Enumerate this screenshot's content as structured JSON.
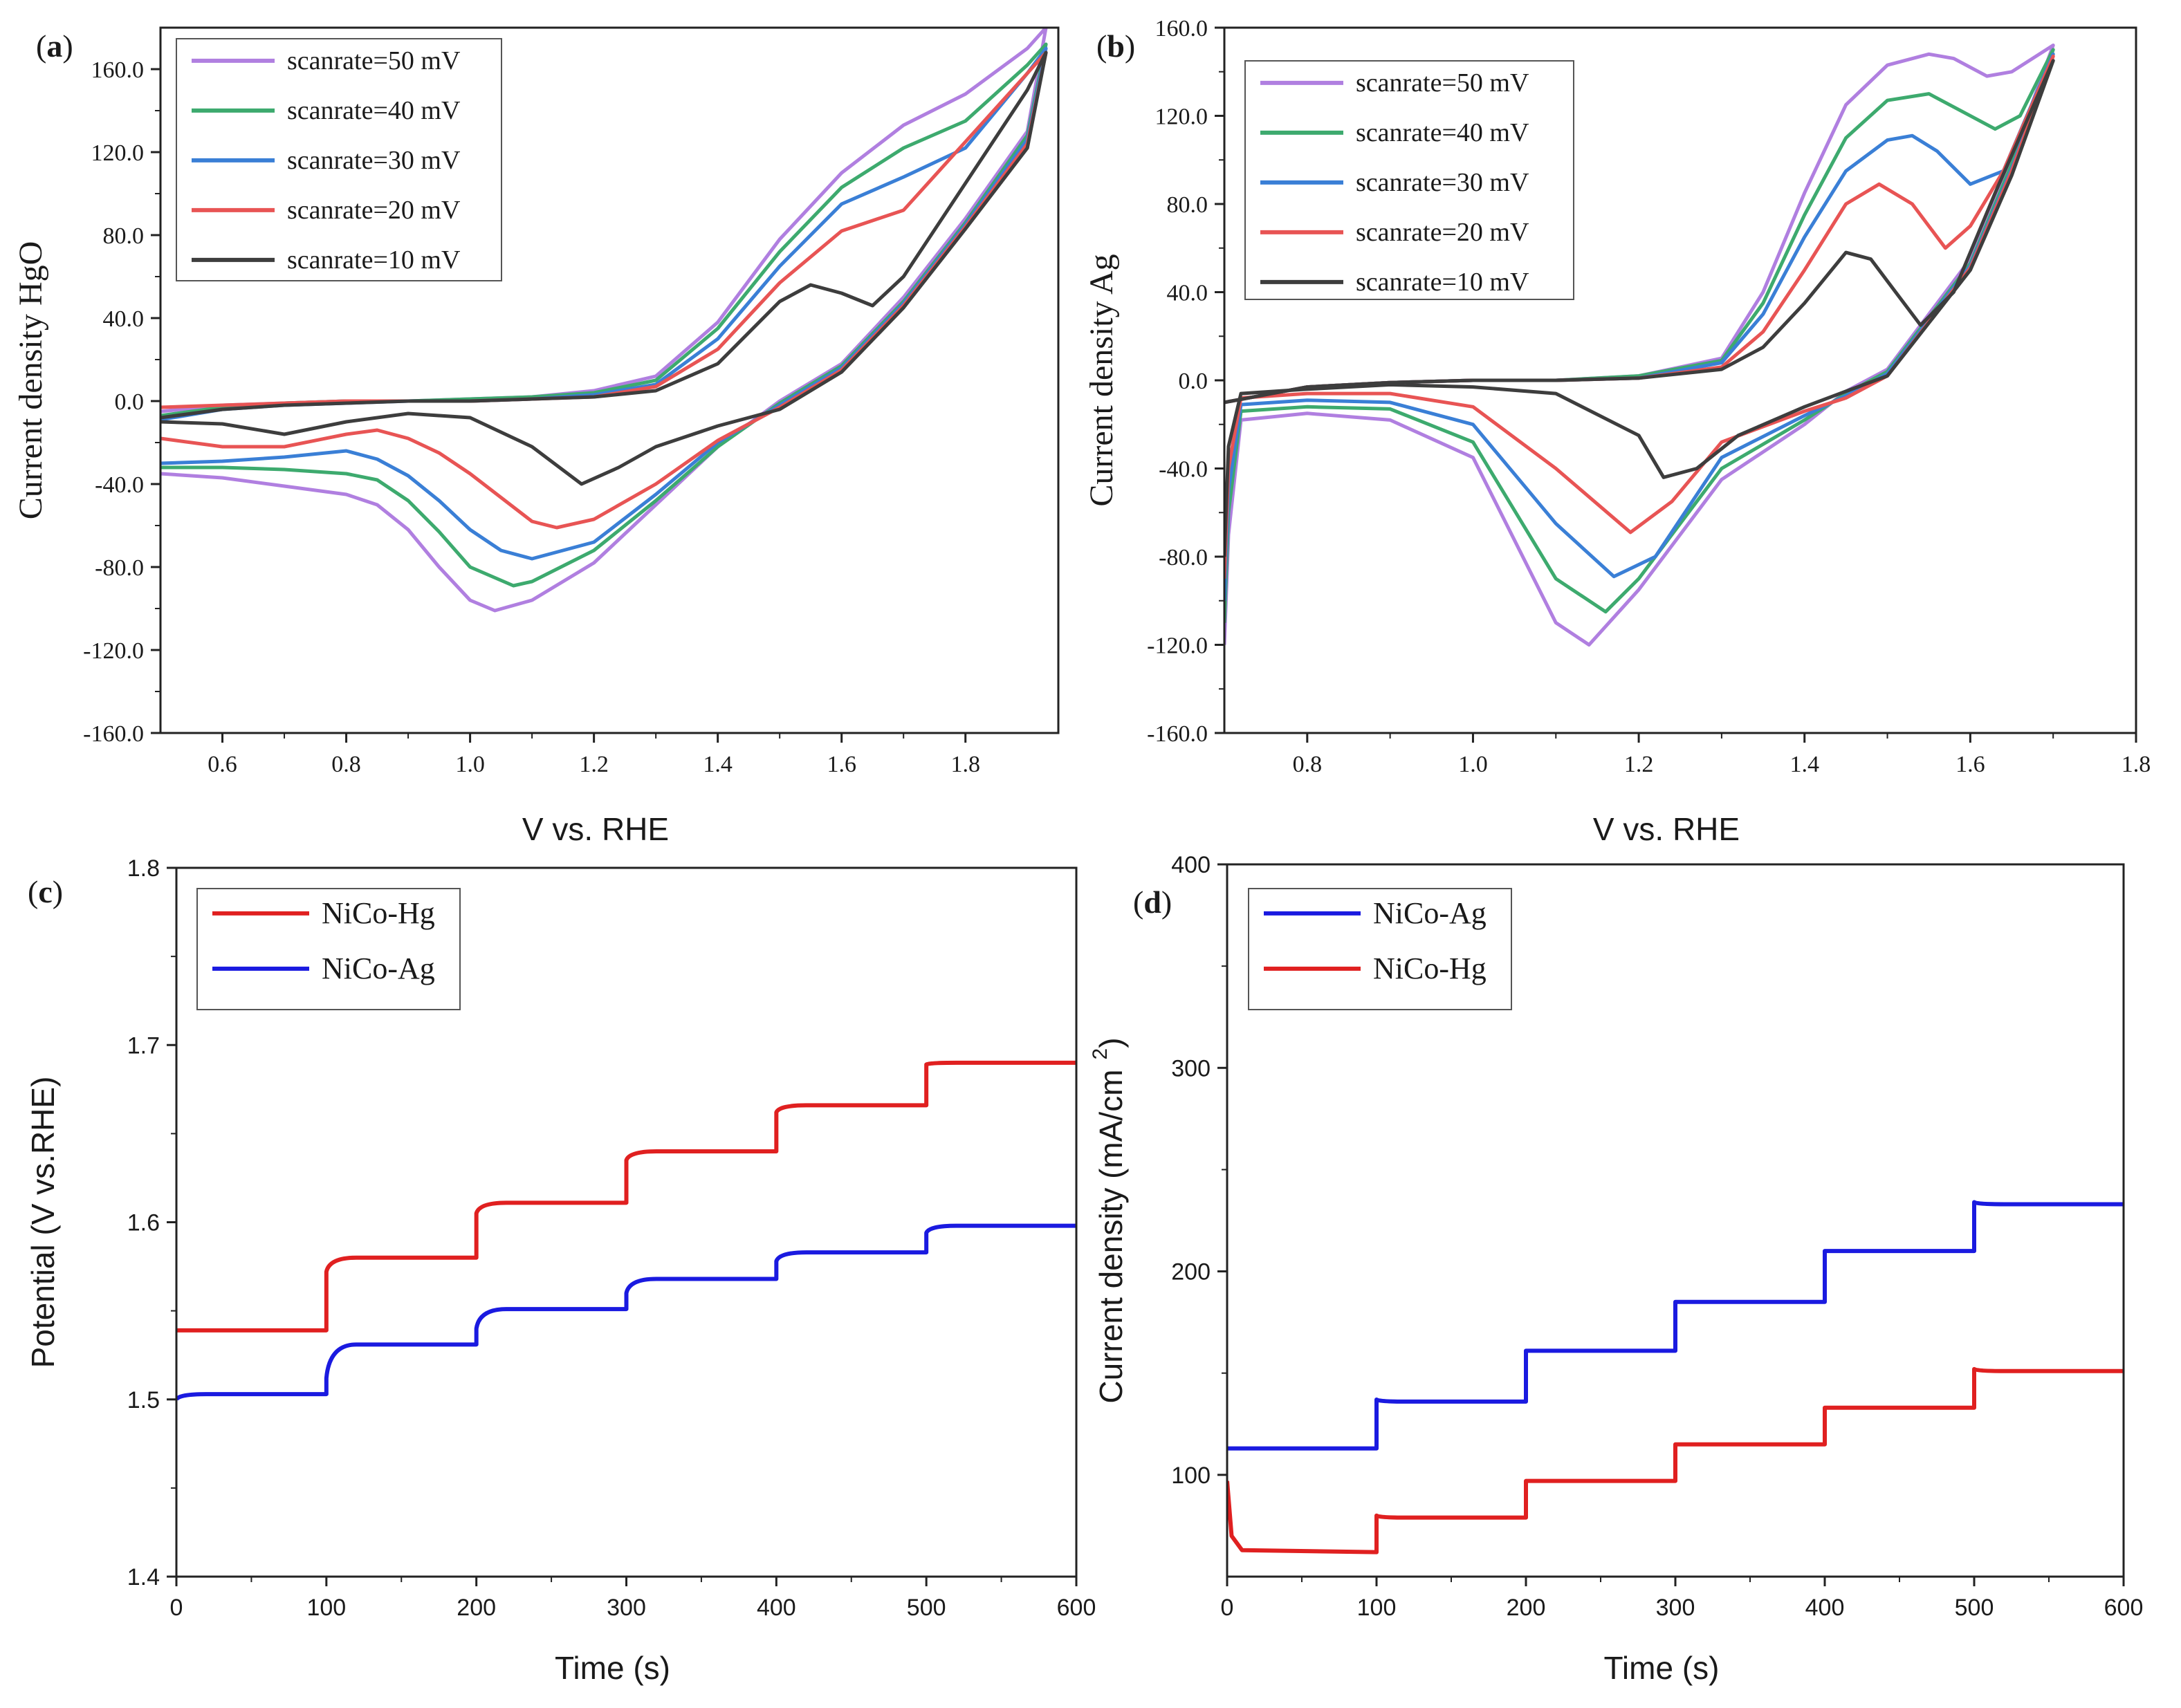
{
  "figure": {
    "panels": [
      "(a)",
      "(b)",
      "(c)",
      "(d)"
    ]
  },
  "chart_data": [
    {
      "id": "a",
      "type": "line",
      "panel_label": "(a)",
      "xlabel": "V vs. RHE",
      "ylabel": "Current density HgO",
      "xlim": [
        0.5,
        1.95
      ],
      "ylim": [
        -160,
        180
      ],
      "xticks": [
        0.6,
        0.8,
        1.0,
        1.2,
        1.4,
        1.6,
        1.8
      ],
      "yticks": [
        -160,
        -120,
        -80,
        -40,
        0,
        40,
        80,
        120,
        160
      ],
      "legend_position": "top-left",
      "series": [
        {
          "name": "scanrate=50 mV",
          "color": "#b07fe0",
          "x": [
            0.5,
            0.6,
            0.7,
            0.8,
            0.9,
            1.0,
            1.1,
            1.2,
            1.3,
            1.4,
            1.5,
            1.6,
            1.7,
            1.8,
            1.9,
            1.93,
            1.9,
            1.8,
            1.7,
            1.6,
            1.5,
            1.4,
            1.3,
            1.2,
            1.1,
            1.04,
            1.0,
            0.95,
            0.9,
            0.85,
            0.8,
            0.7,
            0.6,
            0.5
          ],
          "y": [
            -5,
            -2,
            -1,
            0,
            0,
            1,
            2,
            5,
            12,
            38,
            78,
            110,
            133,
            148,
            170,
            180,
            130,
            88,
            50,
            18,
            0,
            -22,
            -50,
            -78,
            -96,
            -101,
            -96,
            -80,
            -62,
            -50,
            -45,
            -41,
            -37,
            -35
          ]
        },
        {
          "name": "scanrate=40 mV",
          "color": "#3daa6e",
          "x": [
            0.5,
            0.6,
            0.7,
            0.8,
            0.9,
            1.0,
            1.1,
            1.2,
            1.3,
            1.4,
            1.5,
            1.6,
            1.7,
            1.8,
            1.9,
            1.93,
            1.9,
            1.8,
            1.7,
            1.6,
            1.5,
            1.4,
            1.3,
            1.2,
            1.1,
            1.07,
            1.0,
            0.95,
            0.9,
            0.85,
            0.8,
            0.7,
            0.6,
            0.5
          ],
          "y": [
            -7,
            -3,
            -1,
            0,
            0,
            1,
            2,
            4,
            10,
            35,
            72,
            103,
            122,
            135,
            162,
            172,
            128,
            86,
            48,
            17,
            -1,
            -22,
            -48,
            -72,
            -87,
            -89,
            -80,
            -63,
            -48,
            -38,
            -35,
            -33,
            -32,
            -32
          ]
        },
        {
          "name": "scanrate=30 mV",
          "color": "#3a7fd6",
          "x": [
            0.5,
            0.6,
            0.7,
            0.8,
            0.9,
            1.0,
            1.1,
            1.2,
            1.3,
            1.4,
            1.5,
            1.6,
            1.7,
            1.8,
            1.9,
            1.93,
            1.9,
            1.8,
            1.7,
            1.6,
            1.5,
            1.4,
            1.3,
            1.2,
            1.1,
            1.05,
            1.0,
            0.95,
            0.9,
            0.85,
            0.8,
            0.7,
            0.6,
            0.5
          ],
          "y": [
            -9,
            -4,
            -2,
            -1,
            0,
            0,
            1,
            3,
            8,
            30,
            65,
            95,
            108,
            122,
            158,
            170,
            126,
            85,
            47,
            16,
            -2,
            -20,
            -45,
            -68,
            -76,
            -72,
            -62,
            -48,
            -36,
            -28,
            -24,
            -27,
            -29,
            -30
          ]
        },
        {
          "name": "scanrate=20 mV",
          "color": "#e85454",
          "x": [
            0.5,
            0.6,
            0.7,
            0.8,
            0.9,
            1.0,
            1.1,
            1.2,
            1.3,
            1.4,
            1.5,
            1.6,
            1.65,
            1.7,
            1.8,
            1.9,
            1.93,
            1.9,
            1.8,
            1.7,
            1.6,
            1.5,
            1.4,
            1.3,
            1.2,
            1.14,
            1.1,
            1.0,
            0.95,
            0.9,
            0.85,
            0.8,
            0.7,
            0.6,
            0.5
          ],
          "y": [
            -3,
            -2,
            -1,
            0,
            0,
            0,
            1,
            2,
            7,
            25,
            57,
            82,
            87,
            92,
            125,
            158,
            168,
            124,
            84,
            46,
            15,
            -3,
            -19,
            -40,
            -57,
            -61,
            -58,
            -35,
            -25,
            -18,
            -14,
            -16,
            -22,
            -22,
            -18
          ]
        },
        {
          "name": "scanrate=10 mV",
          "color": "#3d3d3d",
          "x": [
            0.5,
            0.6,
            0.7,
            0.8,
            0.9,
            1.0,
            1.1,
            1.2,
            1.3,
            1.4,
            1.5,
            1.55,
            1.6,
            1.65,
            1.7,
            1.8,
            1.9,
            1.93,
            1.9,
            1.8,
            1.7,
            1.6,
            1.5,
            1.4,
            1.3,
            1.24,
            1.18,
            1.1,
            1.0,
            0.9,
            0.8,
            0.7,
            0.6,
            0.5
          ],
          "y": [
            -8,
            -4,
            -2,
            -1,
            0,
            0,
            1,
            2,
            5,
            18,
            48,
            56,
            52,
            46,
            60,
            105,
            150,
            168,
            122,
            83,
            45,
            14,
            -4,
            -12,
            -22,
            -32,
            -40,
            -22,
            -8,
            -6,
            -10,
            -16,
            -11,
            -10
          ]
        }
      ]
    },
    {
      "id": "b",
      "type": "line",
      "panel_label": "(b)",
      "xlabel": "V vs. RHE",
      "ylabel": "Current density Ag",
      "xlim": [
        0.7,
        1.8
      ],
      "ylim": [
        -160,
        160
      ],
      "xticks": [
        0.8,
        1.0,
        1.2,
        1.4,
        1.6,
        1.8
      ],
      "yticks": [
        -160,
        -120,
        -80,
        -40,
        0,
        40,
        80,
        120,
        160
      ],
      "legend_position": "top-left",
      "series": [
        {
          "name": "scanrate=50 mV",
          "color": "#b07fe0",
          "x": [
            0.7,
            0.8,
            0.9,
            1.0,
            1.1,
            1.2,
            1.3,
            1.35,
            1.4,
            1.45,
            1.5,
            1.55,
            1.58,
            1.62,
            1.65,
            1.7,
            1.65,
            1.6,
            1.5,
            1.45,
            1.4,
            1.3,
            1.2,
            1.14,
            1.1,
            1.0,
            0.9,
            0.8,
            0.72,
            0.705,
            0.7
          ],
          "y": [
            -10,
            -3,
            -1,
            0,
            0,
            2,
            10,
            40,
            85,
            125,
            143,
            148,
            146,
            138,
            140,
            152,
            100,
            55,
            5,
            -5,
            -20,
            -45,
            -95,
            -120,
            -110,
            -35,
            -18,
            -15,
            -18,
            -70,
            -120
          ]
        },
        {
          "name": "scanrate=40 mV",
          "color": "#3daa6e",
          "x": [
            0.7,
            0.8,
            0.9,
            1.0,
            1.1,
            1.2,
            1.3,
            1.35,
            1.4,
            1.45,
            1.5,
            1.55,
            1.59,
            1.63,
            1.66,
            1.7,
            1.65,
            1.6,
            1.5,
            1.45,
            1.4,
            1.3,
            1.2,
            1.16,
            1.1,
            1.0,
            0.9,
            0.8,
            0.72,
            0.705,
            0.7
          ],
          "y": [
            -10,
            -3,
            -1,
            0,
            0,
            2,
            9,
            35,
            75,
            110,
            127,
            130,
            122,
            114,
            120,
            150,
            98,
            53,
            4,
            -6,
            -18,
            -40,
            -90,
            -105,
            -90,
            -28,
            -13,
            -12,
            -14,
            -60,
            -110
          ]
        },
        {
          "name": "scanrate=30 mV",
          "color": "#3a7fd6",
          "x": [
            0.7,
            0.8,
            0.9,
            1.0,
            1.1,
            1.2,
            1.3,
            1.35,
            1.4,
            1.45,
            1.5,
            1.53,
            1.56,
            1.6,
            1.64,
            1.7,
            1.65,
            1.6,
            1.5,
            1.45,
            1.4,
            1.3,
            1.22,
            1.17,
            1.1,
            1.0,
            0.9,
            0.8,
            0.72,
            0.705,
            0.7
          ],
          "y": [
            -10,
            -3,
            -1,
            0,
            0,
            1,
            8,
            30,
            65,
            95,
            109,
            111,
            104,
            89,
            95,
            148,
            96,
            52,
            3,
            -7,
            -16,
            -35,
            -80,
            -89,
            -65,
            -20,
            -10,
            -9,
            -11,
            -50,
            -100
          ]
        },
        {
          "name": "scanrate=20 mV",
          "color": "#e85454",
          "x": [
            0.7,
            0.8,
            0.9,
            1.0,
            1.1,
            1.2,
            1.3,
            1.35,
            1.4,
            1.45,
            1.49,
            1.53,
            1.57,
            1.6,
            1.64,
            1.7,
            1.65,
            1.6,
            1.5,
            1.45,
            1.4,
            1.3,
            1.24,
            1.19,
            1.1,
            1.0,
            0.9,
            0.8,
            0.72,
            0.705,
            0.7
          ],
          "y": [
            -10,
            -3,
            -1,
            0,
            0,
            1,
            6,
            22,
            50,
            80,
            89,
            80,
            60,
            70,
            95,
            147,
            95,
            51,
            2,
            -8,
            -14,
            -28,
            -55,
            -69,
            -40,
            -12,
            -6,
            -6,
            -8,
            -40,
            -90
          ]
        },
        {
          "name": "scanrate=10 mV",
          "color": "#3d3d3d",
          "x": [
            0.7,
            0.8,
            0.9,
            1.0,
            1.1,
            1.2,
            1.3,
            1.35,
            1.4,
            1.45,
            1.48,
            1.51,
            1.54,
            1.58,
            1.63,
            1.7,
            1.65,
            1.6,
            1.5,
            1.45,
            1.4,
            1.32,
            1.27,
            1.23,
            1.2,
            1.1,
            1.0,
            0.9,
            0.8,
            0.72,
            0.705,
            0.7
          ],
          "y": [
            -10,
            -3,
            -1,
            0,
            0,
            1,
            5,
            15,
            35,
            58,
            55,
            40,
            25,
            40,
            85,
            145,
            93,
            50,
            2,
            -5,
            -12,
            -25,
            -40,
            -44,
            -25,
            -6,
            -3,
            -2,
            -4,
            -6,
            -30,
            -80
          ]
        }
      ]
    },
    {
      "id": "c",
      "type": "line",
      "panel_label": "(c)",
      "xlabel": "Time (s)",
      "ylabel": "Potential (V vs.RHE)",
      "xlim": [
        0,
        600
      ],
      "ylim": [
        1.4,
        1.8
      ],
      "xticks": [
        0,
        100,
        200,
        300,
        400,
        500,
        600
      ],
      "yticks": [
        1.4,
        1.5,
        1.6,
        1.7,
        1.8
      ],
      "legend_position": "top-left",
      "series": [
        {
          "name": "NiCo-Hg",
          "color": "#e02020",
          "steps": [
            {
              "start": 0,
              "end": 100,
              "from": 1.539,
              "to": 1.539
            },
            {
              "start": 100,
              "end": 200,
              "from": 1.572,
              "to": 1.58
            },
            {
              "start": 200,
              "end": 300,
              "from": 1.605,
              "to": 1.611
            },
            {
              "start": 300,
              "end": 400,
              "from": 1.635,
              "to": 1.64
            },
            {
              "start": 400,
              "end": 500,
              "from": 1.662,
              "to": 1.666
            },
            {
              "start": 500,
              "end": 600,
              "from": 1.689,
              "to": 1.69
            }
          ]
        },
        {
          "name": "NiCo-Ag",
          "color": "#1a1ae0",
          "steps": [
            {
              "start": 0,
              "end": 100,
              "from": 1.5,
              "to": 1.503
            },
            {
              "start": 100,
              "end": 200,
              "from": 1.512,
              "to": 1.531
            },
            {
              "start": 200,
              "end": 300,
              "from": 1.54,
              "to": 1.551
            },
            {
              "start": 300,
              "end": 400,
              "from": 1.56,
              "to": 1.568
            },
            {
              "start": 400,
              "end": 500,
              "from": 1.578,
              "to": 1.583
            },
            {
              "start": 500,
              "end": 600,
              "from": 1.594,
              "to": 1.598
            }
          ]
        }
      ]
    },
    {
      "id": "d",
      "type": "line",
      "panel_label": "(d)",
      "xlabel": "Time (s)",
      "ylabel": "Current density (mA/cm",
      "ylabel_superscript": "2",
      "ylabel_close": ")",
      "xlim": [
        0,
        600
      ],
      "ylim": [
        50,
        400
      ],
      "xticks": [
        0,
        100,
        200,
        300,
        400,
        500,
        600
      ],
      "yticks": [
        100,
        200,
        300,
        400
      ],
      "legend_position": "top-left",
      "series": [
        {
          "name": "NiCo-Ag",
          "color": "#1a1ae0",
          "steps": [
            {
              "start": 0,
              "end": 100,
              "from": 113,
              "to": 113
            },
            {
              "start": 100,
              "end": 200,
              "from": 137,
              "to": 136
            },
            {
              "start": 200,
              "end": 300,
              "from": 161,
              "to": 161
            },
            {
              "start": 300,
              "end": 400,
              "from": 185,
              "to": 185
            },
            {
              "start": 400,
              "end": 500,
              "from": 210,
              "to": 210
            },
            {
              "start": 500,
              "end": 600,
              "from": 234,
              "to": 233
            }
          ]
        },
        {
          "name": "NiCo-Hg",
          "color": "#e02020",
          "steps": [
            {
              "start": 0,
              "end": 100,
              "from": 97,
              "to": 62,
              "initial_drop": true
            },
            {
              "start": 100,
              "end": 200,
              "from": 80,
              "to": 79
            },
            {
              "start": 200,
              "end": 300,
              "from": 97,
              "to": 97
            },
            {
              "start": 300,
              "end": 400,
              "from": 115,
              "to": 115
            },
            {
              "start": 400,
              "end": 500,
              "from": 133,
              "to": 133
            },
            {
              "start": 500,
              "end": 600,
              "from": 152,
              "to": 151
            }
          ]
        }
      ]
    }
  ]
}
